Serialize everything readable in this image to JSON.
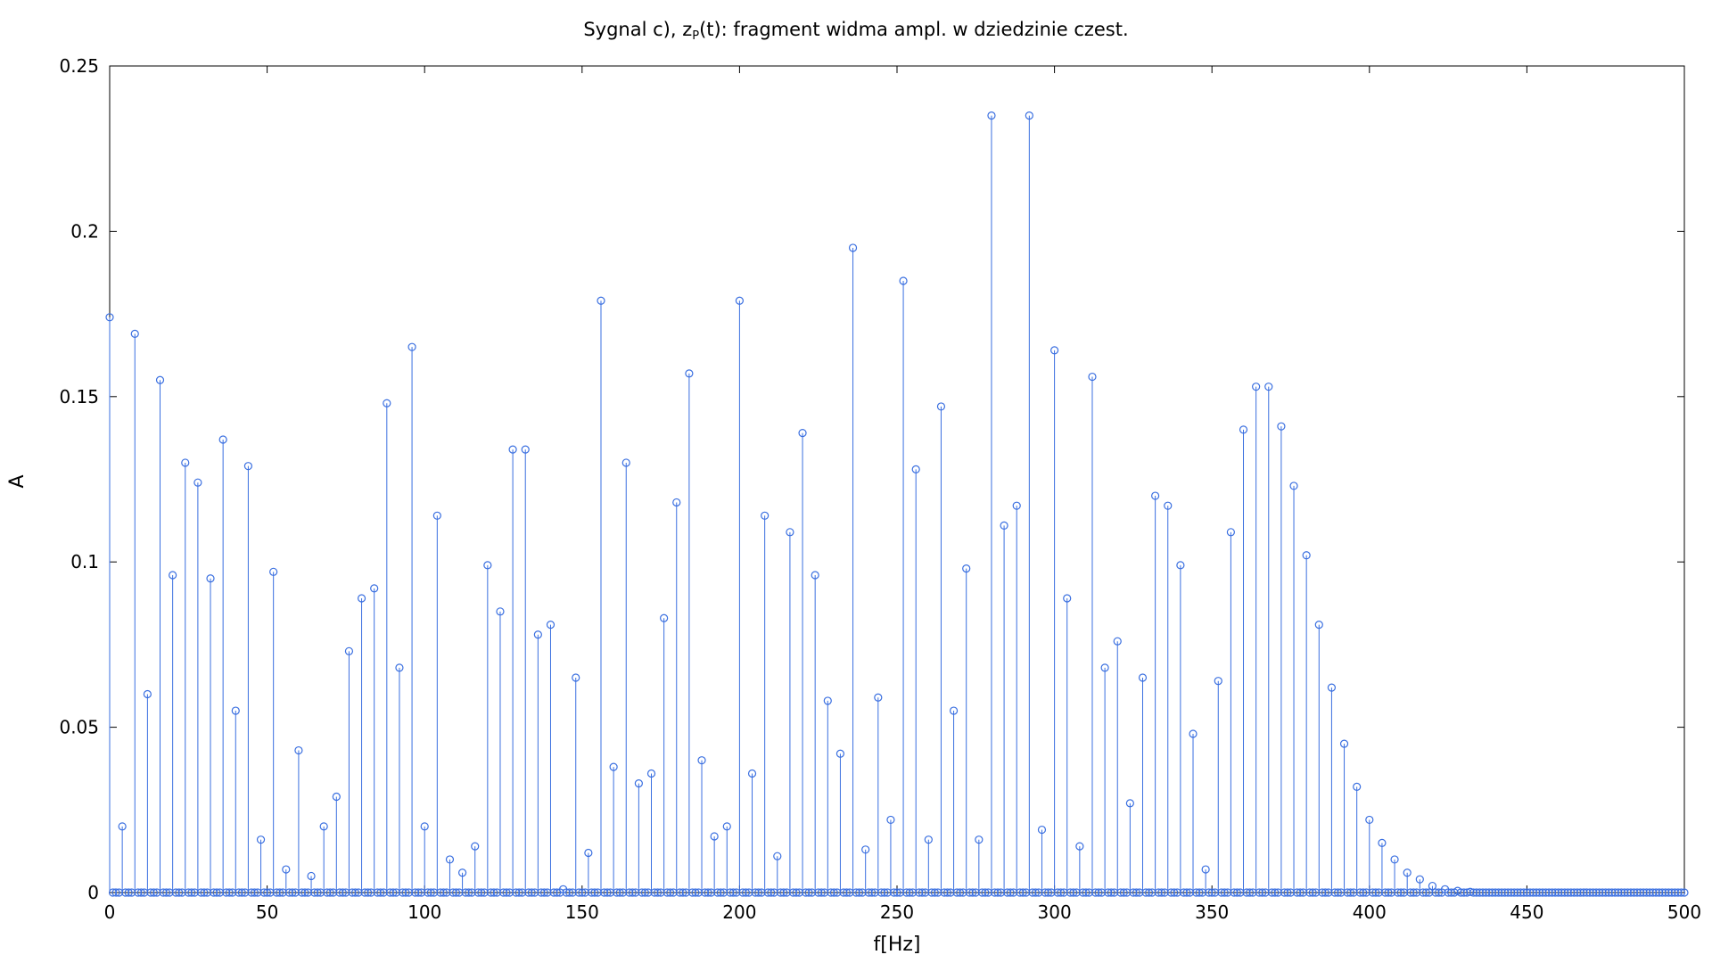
{
  "chart_data": {
    "type": "stem",
    "title": "Sygnal c), z",
    "title_sub": "P",
    "title_rest": "(t): fragment widma ampl. w dziedzinie czest.",
    "xlabel": "f[Hz]",
    "ylabel": "A",
    "xlim": [
      0,
      500
    ],
    "ylim": [
      0,
      0.25
    ],
    "xticks": [
      0,
      50,
      100,
      150,
      200,
      250,
      300,
      350,
      400,
      450,
      500
    ],
    "yticks": [
      0,
      0.05,
      0.1,
      0.15,
      0.2,
      0.25
    ],
    "xtick_labels": [
      "0",
      "50",
      "100",
      "150",
      "200",
      "250",
      "300",
      "350",
      "400",
      "450",
      "500"
    ],
    "ytick_labels": [
      "0",
      "0.05",
      "0.1",
      "0.15",
      "0.2",
      "0.25"
    ],
    "grid": false,
    "color": "#3a6fe0",
    "sample_step": 1,
    "peak_step": 4,
    "peak_x": [
      0,
      4,
      8,
      12,
      16,
      20,
      24,
      28,
      32,
      36,
      40,
      44,
      48,
      52,
      56,
      60,
      64,
      68,
      72,
      76,
      80,
      84,
      88,
      92,
      96,
      100,
      104,
      108,
      112,
      116,
      120,
      124,
      128,
      132,
      136,
      140,
      144,
      148,
      152,
      156,
      160,
      164,
      168,
      172,
      176,
      180,
      184,
      188,
      192,
      196,
      200,
      204,
      208,
      212,
      216,
      220,
      224,
      228,
      232,
      236,
      240,
      244,
      248,
      252,
      256,
      260,
      264,
      268,
      272,
      276,
      280,
      284,
      288,
      292,
      296,
      300,
      304,
      308,
      312,
      316,
      320,
      324,
      328,
      332,
      336,
      340,
      344,
      348,
      352,
      356,
      360,
      364,
      368,
      372,
      376,
      380,
      384,
      388,
      392,
      396,
      400,
      404,
      408,
      412,
      416,
      420,
      424,
      428,
      432
    ],
    "peak_y": [
      0.174,
      0.02,
      0.169,
      0.06,
      0.155,
      0.096,
      0.13,
      0.124,
      0.095,
      0.137,
      0.055,
      0.129,
      0.016,
      0.097,
      0.007,
      0.043,
      0.005,
      0.02,
      0.029,
      0.073,
      0.089,
      0.092,
      0.148,
      0.068,
      0.165,
      0.02,
      0.114,
      0.01,
      0.006,
      0.014,
      0.099,
      0.085,
      0.134,
      0.134,
      0.078,
      0.081,
      0.001,
      0.065,
      0.012,
      0.179,
      0.038,
      0.13,
      0.033,
      0.036,
      0.083,
      0.118,
      0.157,
      0.04,
      0.017,
      0.02,
      0.179,
      0.036,
      0.114,
      0.011,
      0.109,
      0.139,
      0.096,
      0.058,
      0.042,
      0.195,
      0.013,
      0.059,
      0.022,
      0.185,
      0.128,
      0.016,
      0.147,
      0.055,
      0.098,
      0.016,
      0.235,
      0.111,
      0.117,
      0.235,
      0.019,
      0.164,
      0.089,
      0.014,
      0.156,
      0.068,
      0.076,
      0.027,
      0.065,
      0.12,
      0.117,
      0.099,
      0.048,
      0.007,
      0.064,
      0.109,
      0.14,
      0.153,
      0.153,
      0.141,
      0.123,
      0.102,
      0.081,
      0.062,
      0.045,
      0.032,
      0.022,
      0.015,
      0.01,
      0.006,
      0.004,
      0.002,
      0.001,
      0.0005,
      0.0002
    ]
  }
}
